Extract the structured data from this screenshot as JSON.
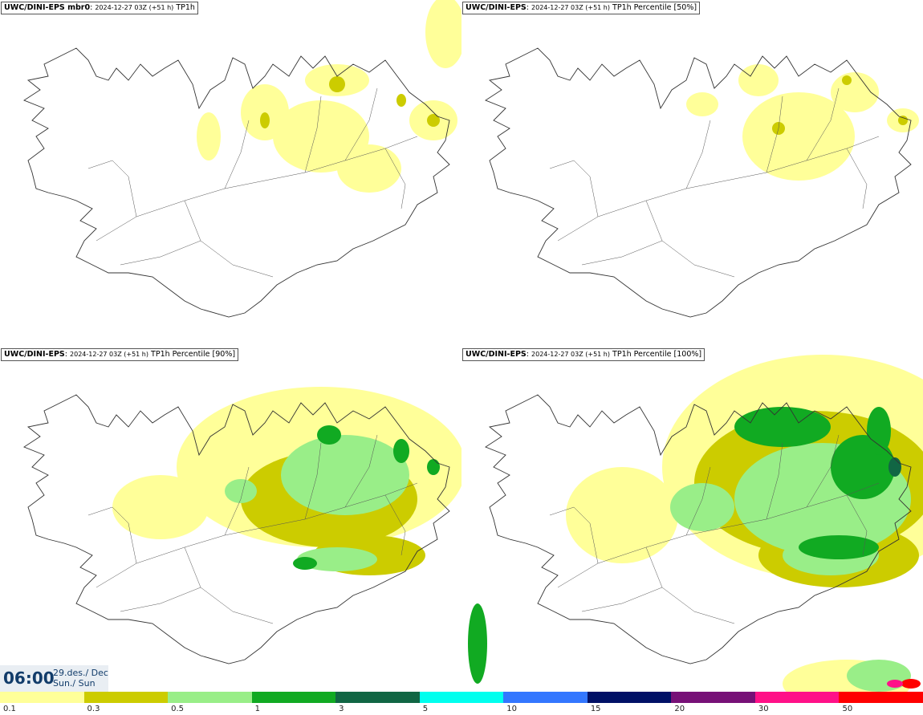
{
  "panels": [
    {
      "model": "UWC/DINI-EPS mbr0",
      "run": "2024-12-27 03Z (+51 h)",
      "field": "TP1h"
    },
    {
      "model": "UWC/DINI-EPS",
      "run": "2024-12-27 03Z (+51 h)",
      "field": "TP1h Percentile [50%]"
    },
    {
      "model": "UWC/DINI-EPS",
      "run": "2024-12-27 03Z (+51 h)",
      "field": "TP1h Percentile [90%]"
    },
    {
      "model": "UWC/DINI-EPS",
      "run": "2024-12-27 03Z (+51 h)",
      "field": "TP1h Percentile [100%]"
    }
  ],
  "valid_time": {
    "time": "06:00",
    "date_line1": "29.des./ Dec",
    "date_line2": "Sun./ Sun"
  },
  "legend": {
    "ticks": [
      "0.1",
      "0.3",
      "0.5",
      "1",
      "3",
      "5",
      "10",
      "15",
      "20",
      "30",
      "50"
    ],
    "colors": [
      "#ffff99",
      "#cccc00",
      "#99ee88",
      "#11aa22",
      "#116644",
      "#00ffee",
      "#3377ff",
      "#001166",
      "#771177",
      "#ff1188",
      "#ff0000"
    ]
  }
}
